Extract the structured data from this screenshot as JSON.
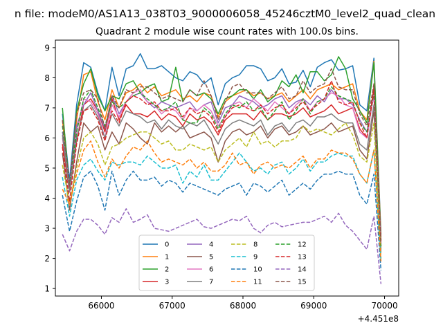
{
  "figure": {
    "suptitle": "n file: modeM0/AS1A13_038T03_9000006058_45246cztM0_level2_quad_clean",
    "title": "Quadrant 2 module wise count rates with 100.0s bins.",
    "x_offset_label": "+4.451e8"
  },
  "chart_data": {
    "type": "line",
    "title": "Quadrant 2 module wise count rates with 100.0s bins.",
    "xlabel": "",
    "ylabel": "",
    "xlim": [
      65350,
      70200
    ],
    "ylim": [
      0.75,
      9.25
    ],
    "x_offset": 445100000,
    "xticks": [
      66000,
      67000,
      68000,
      69000,
      70000
    ],
    "xtick_labels": [
      "66000",
      "67000",
      "68000",
      "69000",
      "70000"
    ],
    "yticks": [
      1,
      2,
      3,
      4,
      5,
      6,
      7,
      8,
      9
    ],
    "ytick_labels": [
      "1",
      "2",
      "3",
      "4",
      "5",
      "6",
      "7",
      "8",
      "9"
    ],
    "legend": {
      "placement": "lower center",
      "columns": 4
    },
    "grid": false,
    "x": [
      65450,
      65550,
      65650,
      65750,
      65850,
      65950,
      66050,
      66150,
      66250,
      66350,
      66450,
      66550,
      66650,
      66750,
      66850,
      66950,
      67050,
      67150,
      67250,
      67350,
      67450,
      67550,
      67650,
      67750,
      67850,
      67950,
      68050,
      68150,
      68250,
      68350,
      68450,
      68550,
      68650,
      68750,
      68850,
      68950,
      69050,
      69150,
      69250,
      69350,
      69450,
      69550,
      69650,
      69750,
      69850,
      69950
    ],
    "series": [
      {
        "name": "0",
        "color": "#1f77b4",
        "dash": "solid",
        "values": [
          6.8,
          4.6,
          7.1,
          8.5,
          8.35,
          7.5,
          6.9,
          8.35,
          7.4,
          8.3,
          8.4,
          8.8,
          8.3,
          8.3,
          8.4,
          8.2,
          8.0,
          7.9,
          8.2,
          8.1,
          7.8,
          8.0,
          7.1,
          7.8,
          8.0,
          8.1,
          8.4,
          8.4,
          8.3,
          7.9,
          8.0,
          8.3,
          7.8,
          7.85,
          8.25,
          7.7,
          8.35,
          8.5,
          8.6,
          8.25,
          8.3,
          8.4,
          7.1,
          6.9,
          8.65,
          2.8
        ]
      },
      {
        "name": "1",
        "color": "#ff7f0e",
        "dash": "solid",
        "values": [
          6.6,
          4.3,
          6.6,
          8.1,
          8.2,
          7.2,
          6.6,
          7.6,
          7.0,
          7.5,
          7.6,
          7.8,
          7.5,
          7.7,
          7.4,
          7.5,
          7.6,
          7.3,
          7.4,
          7.2,
          7.5,
          7.4,
          6.7,
          7.2,
          7.4,
          7.5,
          7.6,
          7.4,
          7.5,
          7.3,
          7.4,
          7.5,
          7.2,
          7.4,
          7.6,
          7.3,
          7.6,
          7.7,
          7.8,
          7.6,
          7.7,
          7.8,
          6.9,
          6.6,
          8.55,
          2.7
        ]
      },
      {
        "name": "2",
        "color": "#2ca02c",
        "dash": "solid",
        "values": [
          7.0,
          4.3,
          6.9,
          7.8,
          8.3,
          7.4,
          6.9,
          7.4,
          7.3,
          7.8,
          7.9,
          7.5,
          7.7,
          7.8,
          7.2,
          7.3,
          8.35,
          7.2,
          7.6,
          7.4,
          7.5,
          7.3,
          6.8,
          7.3,
          7.4,
          7.6,
          7.6,
          7.3,
          7.6,
          7.2,
          7.4,
          7.9,
          7.7,
          8.1,
          7.5,
          8.2,
          8.2,
          7.9,
          8.1,
          8.7,
          8.3,
          7.3,
          6.9,
          6.5,
          8.5,
          2.6
        ]
      },
      {
        "name": "3",
        "color": "#d62728",
        "dash": "solid",
        "values": [
          5.8,
          4.2,
          5.9,
          7.1,
          7.3,
          6.9,
          6.2,
          7.3,
          6.6,
          7.1,
          6.8,
          6.8,
          6.7,
          6.9,
          6.6,
          6.8,
          6.7,
          6.4,
          6.8,
          6.6,
          6.7,
          6.5,
          6.1,
          6.6,
          6.8,
          6.8,
          6.8,
          6.6,
          6.9,
          6.6,
          6.8,
          6.8,
          6.7,
          6.8,
          7.0,
          6.7,
          6.8,
          6.9,
          7.1,
          6.8,
          6.9,
          7.0,
          6.3,
          6.0,
          7.7,
          2.5
        ]
      },
      {
        "name": "4",
        "color": "#9467bd",
        "dash": "solid",
        "values": [
          6.2,
          4.5,
          6.4,
          7.1,
          7.5,
          6.9,
          6.3,
          7.4,
          6.8,
          7.2,
          7.4,
          7.5,
          7.2,
          7.0,
          7.2,
          7.1,
          7.0,
          7.1,
          7.2,
          6.9,
          7.1,
          7.2,
          6.5,
          7.0,
          7.1,
          7.4,
          7.3,
          7.2,
          7.0,
          7.1,
          7.3,
          7.4,
          7.0,
          7.2,
          7.3,
          7.1,
          7.4,
          7.2,
          7.6,
          7.3,
          7.3,
          7.1,
          6.6,
          6.2,
          7.4,
          2.4
        ]
      },
      {
        "name": "5",
        "color": "#8c564b",
        "dash": "solid",
        "values": [
          5.5,
          3.6,
          5.2,
          6.5,
          6.2,
          6.4,
          5.6,
          6.2,
          5.8,
          6.5,
          6.3,
          6.0,
          5.8,
          6.5,
          6.2,
          6.4,
          6.2,
          6.4,
          6.0,
          6.1,
          6.2,
          6.0,
          5.2,
          5.9,
          6.2,
          6.3,
          6.1,
          6.2,
          6.4,
          6.0,
          6.3,
          6.4,
          6.1,
          6.2,
          6.4,
          6.1,
          6.2,
          6.3,
          6.5,
          6.2,
          6.3,
          6.4,
          5.6,
          5.3,
          6.9,
          2.3
        ]
      },
      {
        "name": "6",
        "color": "#e377c2",
        "dash": "solid",
        "values": [
          6.0,
          4.4,
          6.2,
          7.3,
          7.2,
          6.8,
          6.0,
          7.1,
          6.7,
          7.2,
          7.5,
          7.6,
          7.2,
          7.1,
          6.8,
          7.0,
          6.9,
          6.6,
          7.0,
          6.9,
          7.1,
          6.9,
          6.4,
          6.7,
          7.1,
          7.2,
          7.0,
          7.3,
          7.1,
          6.9,
          7.2,
          7.0,
          6.8,
          7.1,
          7.3,
          6.9,
          7.2,
          7.3,
          7.5,
          7.4,
          7.1,
          7.0,
          6.2,
          6.0,
          7.5,
          2.4
        ]
      },
      {
        "name": "7",
        "color": "#7f7f7f",
        "dash": "solid",
        "values": [
          6.1,
          4.2,
          6.0,
          6.9,
          7.1,
          6.7,
          6.0,
          6.8,
          6.4,
          6.9,
          6.8,
          6.7,
          6.5,
          6.6,
          6.3,
          6.6,
          6.4,
          6.3,
          6.5,
          6.4,
          6.6,
          6.2,
          5.8,
          6.3,
          6.5,
          6.6,
          6.5,
          6.4,
          6.6,
          6.1,
          6.4,
          6.5,
          6.2,
          6.5,
          6.6,
          6.4,
          6.7,
          6.7,
          6.8,
          6.6,
          6.5,
          6.5,
          5.8,
          5.6,
          7.1,
          2.2
        ]
      },
      {
        "name": "8",
        "color": "#bcbd22",
        "dash": "dashed",
        "values": [
          5.1,
          3.8,
          5.0,
          6.0,
          6.2,
          5.8,
          5.1,
          5.7,
          5.8,
          6.0,
          6.1,
          6.2,
          6.2,
          6.0,
          5.8,
          5.9,
          5.6,
          5.6,
          5.8,
          5.7,
          5.6,
          5.7,
          5.2,
          5.6,
          5.8,
          6.0,
          5.7,
          6.2,
          5.8,
          5.9,
          5.7,
          5.9,
          5.9,
          6.0,
          6.4,
          6.2,
          6.3,
          6.2,
          6.1,
          6.3,
          6.5,
          6.1,
          5.4,
          5.2,
          6.5,
          2.0
        ]
      },
      {
        "name": "9",
        "color": "#17becf",
        "dash": "dashed",
        "values": [
          4.7,
          3.4,
          4.6,
          5.1,
          5.3,
          4.9,
          4.6,
          5.2,
          5.1,
          5.2,
          5.2,
          5.1,
          5.4,
          5.2,
          5.0,
          5.0,
          5.1,
          4.5,
          4.9,
          4.7,
          5.1,
          4.6,
          4.6,
          4.9,
          5.2,
          5.5,
          5.2,
          4.9,
          5.0,
          4.8,
          5.1,
          5.2,
          4.8,
          5.0,
          5.3,
          4.9,
          5.2,
          5.2,
          5.4,
          5.5,
          5.4,
          5.4,
          4.8,
          4.5,
          5.6,
          1.9
        ]
      },
      {
        "name": "10",
        "color": "#1f77b4",
        "dash": "dashed",
        "values": [
          4.1,
          2.9,
          3.9,
          4.7,
          4.9,
          4.4,
          3.6,
          4.9,
          4.1,
          4.6,
          4.9,
          4.6,
          4.6,
          4.7,
          4.4,
          4.6,
          4.5,
          4.2,
          4.5,
          4.4,
          4.3,
          4.2,
          4.1,
          4.3,
          4.4,
          4.5,
          4.1,
          4.5,
          4.4,
          4.2,
          4.4,
          4.6,
          4.1,
          4.3,
          4.5,
          4.3,
          4.6,
          4.8,
          4.8,
          4.9,
          4.8,
          4.8,
          4.1,
          3.8,
          4.8,
          1.6
        ]
      },
      {
        "name": "11",
        "color": "#ff7f0e",
        "dash": "dashed",
        "values": [
          4.3,
          3.8,
          4.8,
          5.6,
          5.9,
          5.2,
          4.7,
          5.3,
          5.0,
          5.4,
          5.7,
          5.6,
          5.9,
          5.5,
          5.2,
          5.3,
          5.2,
          5.1,
          5.3,
          5.0,
          5.2,
          4.9,
          4.9,
          5.1,
          5.5,
          5.1,
          5.2,
          4.8,
          5.1,
          5.2,
          5.0,
          5.1,
          5.0,
          5.2,
          5.4,
          5.0,
          5.3,
          5.3,
          5.6,
          5.5,
          5.5,
          5.3,
          4.8,
          4.5,
          5.6,
          1.9
        ]
      },
      {
        "name": "12",
        "color": "#2ca02c",
        "dash": "dashed",
        "values": [
          6.4,
          4.5,
          6.2,
          7.3,
          7.6,
          7.0,
          6.4,
          7.2,
          7.0,
          7.2,
          7.4,
          7.5,
          7.3,
          7.1,
          6.9,
          7.0,
          7.2,
          6.6,
          6.5,
          6.5,
          7.0,
          6.8,
          6.3,
          6.8,
          7.1,
          7.0,
          7.2,
          6.9,
          7.0,
          6.6,
          6.9,
          7.2,
          6.6,
          6.9,
          7.3,
          6.8,
          7.2,
          7.3,
          7.7,
          7.4,
          7.3,
          7.2,
          6.5,
          6.2,
          7.5,
          2.4
        ]
      },
      {
        "name": "13",
        "color": "#d62728",
        "dash": "dashed",
        "values": [
          5.7,
          3.9,
          5.8,
          6.9,
          7.0,
          6.6,
          5.9,
          6.9,
          6.5,
          7.2,
          7.4,
          7.3,
          7.1,
          7.2,
          6.9,
          6.9,
          7.0,
          6.7,
          7.0,
          6.8,
          6.9,
          6.7,
          6.2,
          6.7,
          7.0,
          7.1,
          7.0,
          6.9,
          7.1,
          6.8,
          7.0,
          7.1,
          6.8,
          7.0,
          7.2,
          6.9,
          7.1,
          7.3,
          7.9,
          7.2,
          7.1,
          7.2,
          6.5,
          6.0,
          7.6,
          2.5
        ]
      },
      {
        "name": "14",
        "color": "#9467bd",
        "dash": "dashed",
        "values": [
          2.8,
          2.25,
          2.9,
          3.3,
          3.3,
          3.1,
          2.8,
          3.35,
          3.2,
          3.65,
          3.2,
          3.3,
          3.45,
          3.0,
          2.95,
          2.9,
          3.0,
          3.1,
          3.2,
          3.3,
          3.05,
          3.0,
          3.1,
          3.2,
          3.3,
          3.25,
          3.4,
          3.0,
          2.85,
          3.1,
          3.2,
          3.05,
          3.1,
          3.15,
          3.2,
          3.2,
          3.3,
          3.4,
          3.2,
          3.5,
          3.1,
          2.9,
          2.6,
          2.3,
          3.4,
          1.15
        ]
      },
      {
        "name": "15",
        "color": "#8c564b",
        "dash": "dashed",
        "values": [
          6.6,
          4.4,
          6.8,
          7.5,
          7.6,
          7.3,
          6.3,
          7.4,
          7.0,
          7.6,
          7.5,
          7.7,
          7.7,
          7.5,
          7.3,
          7.4,
          7.3,
          7.2,
          7.6,
          7.4,
          7.9,
          7.4,
          6.6,
          7.2,
          7.7,
          7.8,
          7.5,
          7.5,
          7.5,
          7.3,
          7.5,
          7.7,
          7.3,
          7.4,
          7.9,
          7.5,
          7.7,
          7.8,
          8.3,
          7.7,
          7.6,
          7.6,
          6.8,
          6.4,
          7.8,
          2.6
        ]
      }
    ]
  }
}
